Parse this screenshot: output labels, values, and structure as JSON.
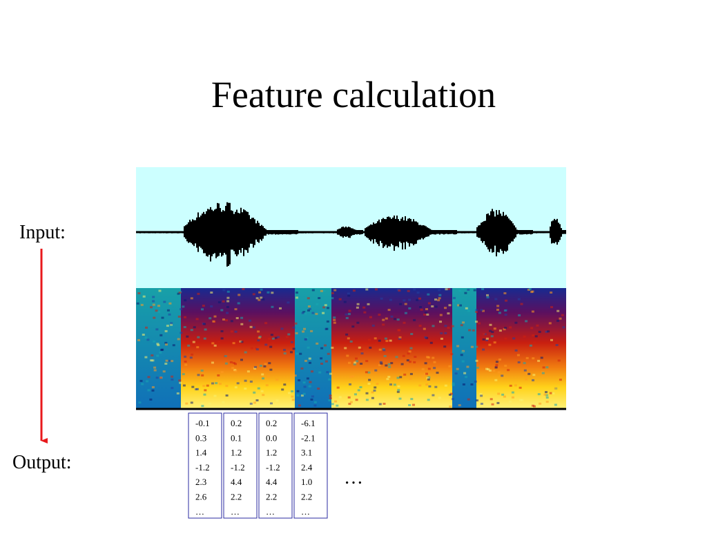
{
  "title": "Feature calculation",
  "input_label": "Input:",
  "output_label": "Output:",
  "feature_vectors": [
    [
      "-0.1",
      "0.3",
      "1.4",
      "-1.2",
      "2.3",
      "2.6",
      "…"
    ],
    [
      "0.2",
      "0.1",
      "1.2",
      "-1.2",
      "4.4",
      "2.2",
      "…"
    ],
    [
      "0.2",
      "0.0",
      "1.2",
      "-1.2",
      "4.4",
      "2.2",
      "…"
    ],
    [
      "-6.1",
      "-2.1",
      "3.1",
      "2.4",
      "1.0",
      "2.2",
      "…"
    ]
  ],
  "continuation": "…"
}
